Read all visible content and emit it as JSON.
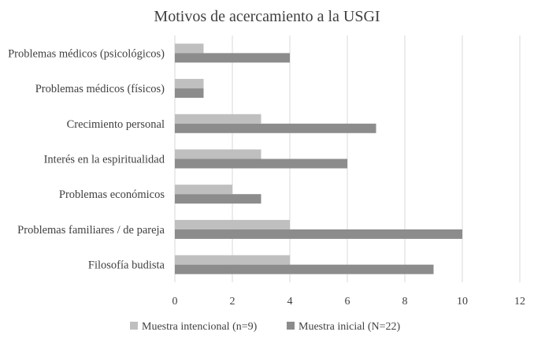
{
  "chart_data": {
    "type": "bar",
    "orientation": "horizontal",
    "title": "Motivos de acercamiento a la USGI",
    "categories": [
      "Problemas médicos (psicológicos)",
      "Problemas médicos (físicos)",
      "Crecimiento personal",
      "Interés en la espiritualidad",
      "Problemas económicos",
      "Problemas familiares / de pareja",
      "Filosofía budista"
    ],
    "series": [
      {
        "name": "Muestra intencional (n=9)",
        "color": "#bfbfbf",
        "values": [
          1,
          1,
          3,
          3,
          2,
          4,
          4
        ]
      },
      {
        "name": "Muestra inicial (N=22)",
        "color": "#8c8c8c",
        "values": [
          4,
          1,
          7,
          6,
          3,
          10,
          9
        ]
      }
    ],
    "xlim": [
      0,
      12
    ],
    "xticks": [
      "0",
      "2",
      "4",
      "6",
      "8",
      "10",
      "12"
    ],
    "xlabel": "",
    "ylabel": "",
    "grid": true,
    "legend_position": "bottom"
  }
}
